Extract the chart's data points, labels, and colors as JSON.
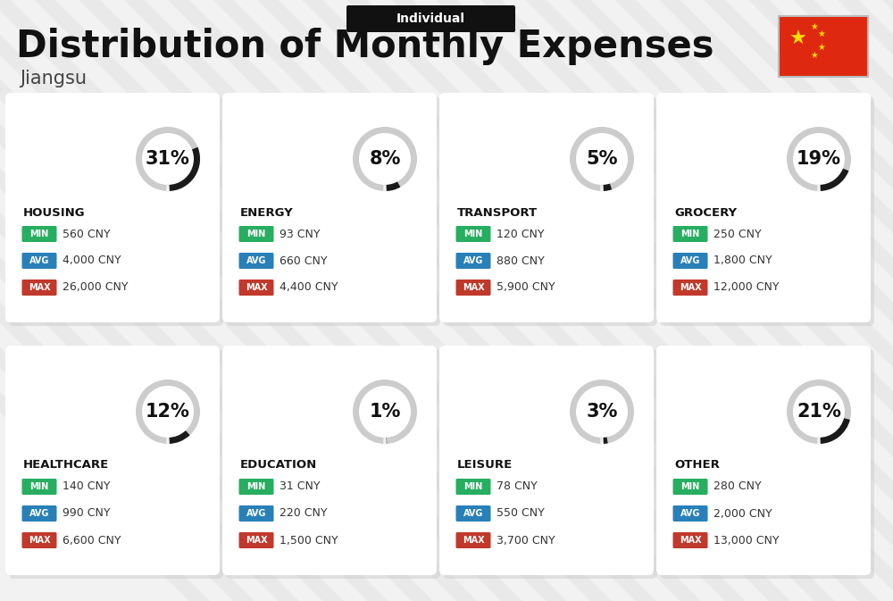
{
  "title": "Distribution of Monthly Expenses",
  "subtitle": "Individual",
  "region": "Jiangsu",
  "background_color": "#f2f2f2",
  "card_bg": "#ffffff",
  "categories": [
    {
      "name": "HOUSING",
      "pct": 31,
      "min_val": "560 CNY",
      "avg_val": "4,000 CNY",
      "max_val": "26,000 CNY",
      "row": 0,
      "col": 0
    },
    {
      "name": "ENERGY",
      "pct": 8,
      "min_val": "93 CNY",
      "avg_val": "660 CNY",
      "max_val": "4,400 CNY",
      "row": 0,
      "col": 1
    },
    {
      "name": "TRANSPORT",
      "pct": 5,
      "min_val": "120 CNY",
      "avg_val": "880 CNY",
      "max_val": "5,900 CNY",
      "row": 0,
      "col": 2
    },
    {
      "name": "GROCERY",
      "pct": 19,
      "min_val": "250 CNY",
      "avg_val": "1,800 CNY",
      "max_val": "12,000 CNY",
      "row": 0,
      "col": 3
    },
    {
      "name": "HEALTHCARE",
      "pct": 12,
      "min_val": "140 CNY",
      "avg_val": "990 CNY",
      "max_val": "6,600 CNY",
      "row": 1,
      "col": 0
    },
    {
      "name": "EDUCATION",
      "pct": 1,
      "min_val": "31 CNY",
      "avg_val": "220 CNY",
      "max_val": "1,500 CNY",
      "row": 1,
      "col": 1
    },
    {
      "name": "LEISURE",
      "pct": 3,
      "min_val": "78 CNY",
      "avg_val": "550 CNY",
      "max_val": "3,700 CNY",
      "row": 1,
      "col": 2
    },
    {
      "name": "OTHER",
      "pct": 21,
      "min_val": "280 CNY",
      "avg_val": "2,000 CNY",
      "max_val": "13,000 CNY",
      "row": 1,
      "col": 3
    }
  ],
  "min_color": "#27ae60",
  "avg_color": "#2980b9",
  "max_color": "#c0392b",
  "arc_bg_color": "#cccccc",
  "arc_fg_color": "#1a1a1a",
  "title_fontsize": 30,
  "subtitle_fontsize": 10,
  "region_fontsize": 15,
  "pct_fontsize": 15,
  "name_fontsize": 9.5,
  "val_fontsize": 9,
  "badge_fontsize": 7,
  "flag_color": "#de2910",
  "star_color": "#ffde00",
  "stripe_color": "#e0e0e0",
  "subtitle_bg": "#111111"
}
